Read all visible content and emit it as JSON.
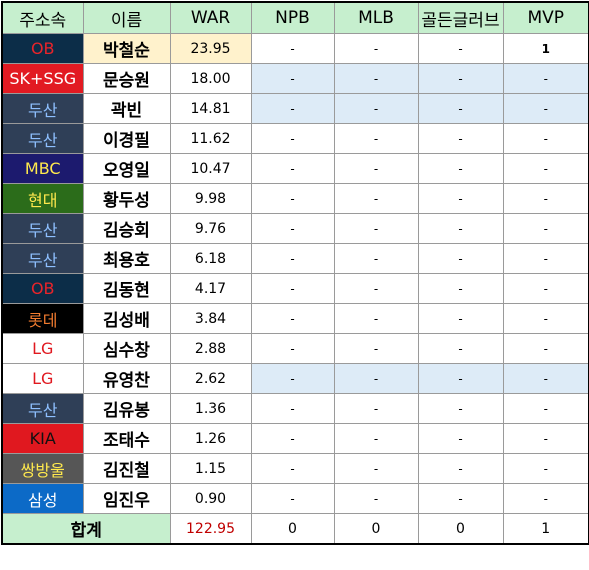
{
  "headers": [
    "주소속",
    "이름",
    "WAR",
    "NPB",
    "MLB",
    "골든글러브",
    "MVP"
  ],
  "colors": {
    "header_bg": "#c6efce",
    "highlight_row_bg": "#ddebf7",
    "war_first_bg": "#fff2cc",
    "total_war_color": "#c00000"
  },
  "rows": [
    {
      "team": "OB",
      "team_bg": "#0c2d48",
      "team_fg": "#e8242a",
      "name": "박철순",
      "war": "23.95",
      "npb": "-",
      "mlb": "-",
      "gg": "-",
      "mvp": "1",
      "hl": false,
      "name_bg": "#fff2cc",
      "war_bg": "#fff2cc"
    },
    {
      "team": "SK+SSG",
      "team_bg": "#e21a22",
      "team_fg": "#ffffff",
      "name": "문승원",
      "war": "18.00",
      "npb": "-",
      "mlb": "-",
      "gg": "-",
      "mvp": "-",
      "hl": true,
      "name_bg": "#ffffff",
      "war_bg": "#ffffff"
    },
    {
      "team": "두산",
      "team_bg": "#2f3f57",
      "team_fg": "#8fc0ff",
      "name": "곽빈",
      "war": "14.81",
      "npb": "-",
      "mlb": "-",
      "gg": "-",
      "mvp": "-",
      "hl": true,
      "name_bg": "#ffffff",
      "war_bg": "#ffffff"
    },
    {
      "team": "두산",
      "team_bg": "#2f3f57",
      "team_fg": "#8fc0ff",
      "name": "이경필",
      "war": "11.62",
      "npb": "-",
      "mlb": "-",
      "gg": "-",
      "mvp": "-",
      "hl": false,
      "name_bg": "#ffffff",
      "war_bg": "#ffffff"
    },
    {
      "team": "MBC",
      "team_bg": "#1c1a6e",
      "team_fg": "#ffe94d",
      "name": "오영일",
      "war": "10.47",
      "npb": "-",
      "mlb": "-",
      "gg": "-",
      "mvp": "-",
      "hl": false,
      "name_bg": "#ffffff",
      "war_bg": "#ffffff"
    },
    {
      "team": "현대",
      "team_bg": "#2b6c1a",
      "team_fg": "#ffe94d",
      "name": "황두성",
      "war": "9.98",
      "npb": "-",
      "mlb": "-",
      "gg": "-",
      "mvp": "-",
      "hl": false,
      "name_bg": "#ffffff",
      "war_bg": "#ffffff"
    },
    {
      "team": "두산",
      "team_bg": "#2f3f57",
      "team_fg": "#8fc0ff",
      "name": "김승회",
      "war": "9.76",
      "npb": "-",
      "mlb": "-",
      "gg": "-",
      "mvp": "-",
      "hl": false,
      "name_bg": "#ffffff",
      "war_bg": "#ffffff"
    },
    {
      "team": "두산",
      "team_bg": "#2f3f57",
      "team_fg": "#8fc0ff",
      "name": "최용호",
      "war": "6.18",
      "npb": "-",
      "mlb": "-",
      "gg": "-",
      "mvp": "-",
      "hl": false,
      "name_bg": "#ffffff",
      "war_bg": "#ffffff"
    },
    {
      "team": "OB",
      "team_bg": "#0c2d48",
      "team_fg": "#e8242a",
      "name": "김동현",
      "war": "4.17",
      "npb": "-",
      "mlb": "-",
      "gg": "-",
      "mvp": "-",
      "hl": false,
      "name_bg": "#ffffff",
      "war_bg": "#ffffff"
    },
    {
      "team": "롯데",
      "team_bg": "#000000",
      "team_fg": "#f47d30",
      "name": "김성배",
      "war": "3.84",
      "npb": "-",
      "mlb": "-",
      "gg": "-",
      "mvp": "-",
      "hl": false,
      "name_bg": "#ffffff",
      "war_bg": "#ffffff"
    },
    {
      "team": "LG",
      "team_bg": "#ffffff",
      "team_fg": "#e0181f",
      "name": "심수창",
      "war": "2.88",
      "npb": "-",
      "mlb": "-",
      "gg": "-",
      "mvp": "-",
      "hl": false,
      "name_bg": "#ffffff",
      "war_bg": "#ffffff"
    },
    {
      "team": "LG",
      "team_bg": "#ffffff",
      "team_fg": "#e0181f",
      "name": "유영찬",
      "war": "2.62",
      "npb": "-",
      "mlb": "-",
      "gg": "-",
      "mvp": "-",
      "hl": true,
      "name_bg": "#ffffff",
      "war_bg": "#ffffff"
    },
    {
      "team": "두산",
      "team_bg": "#2f3f57",
      "team_fg": "#8fc0ff",
      "name": "김유봉",
      "war": "1.36",
      "npb": "-",
      "mlb": "-",
      "gg": "-",
      "mvp": "-",
      "hl": false,
      "name_bg": "#ffffff",
      "war_bg": "#ffffff"
    },
    {
      "team": "KIA",
      "team_bg": "#e0181f",
      "team_fg": "#111111",
      "name": "조태수",
      "war": "1.26",
      "npb": "-",
      "mlb": "-",
      "gg": "-",
      "mvp": "-",
      "hl": false,
      "name_bg": "#ffffff",
      "war_bg": "#ffffff"
    },
    {
      "team": "쌍방울",
      "team_bg": "#565656",
      "team_fg": "#ffe94d",
      "name": "김진철",
      "war": "1.15",
      "npb": "-",
      "mlb": "-",
      "gg": "-",
      "mvp": "-",
      "hl": false,
      "name_bg": "#ffffff",
      "war_bg": "#ffffff"
    },
    {
      "team": "삼성",
      "team_bg": "#0c6ac7",
      "team_fg": "#ffffff",
      "name": "임진우",
      "war": "0.90",
      "npb": "-",
      "mlb": "-",
      "gg": "-",
      "mvp": "-",
      "hl": false,
      "name_bg": "#ffffff",
      "war_bg": "#ffffff"
    }
  ],
  "total": {
    "label": "합계",
    "war": "122.95",
    "npb": "0",
    "mlb": "0",
    "gg": "0",
    "mvp": "1"
  }
}
